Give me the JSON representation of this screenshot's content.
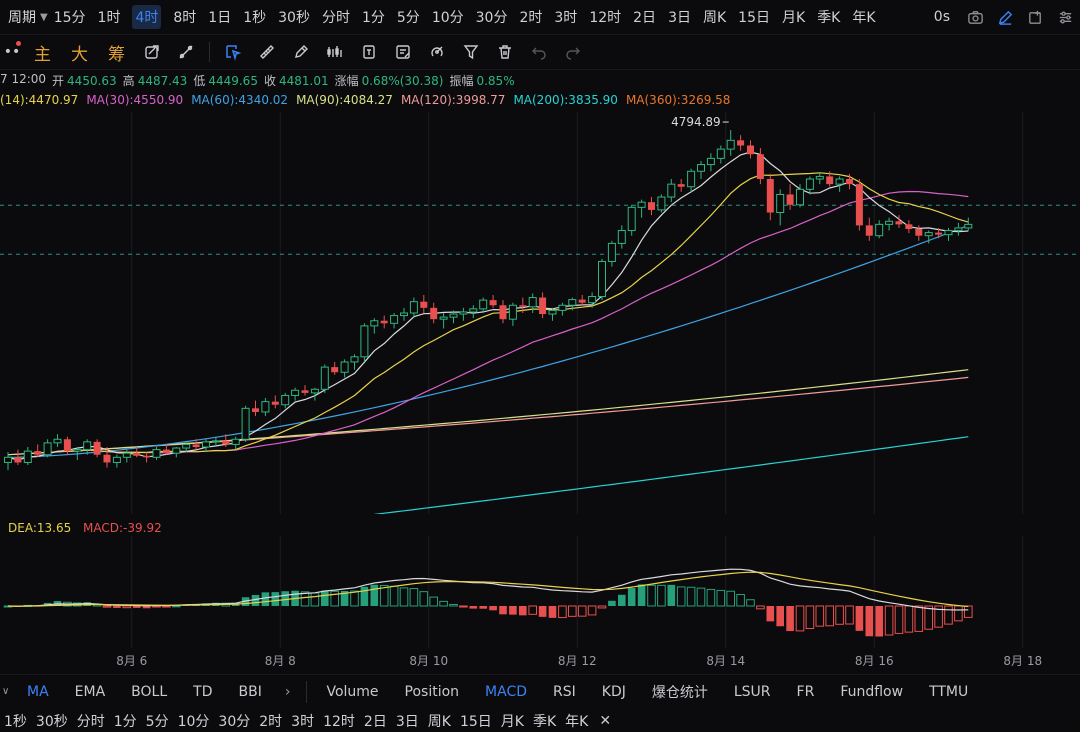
{
  "topbar": {
    "period_label": "周期",
    "timeframes": [
      "15分",
      "1时",
      "4时",
      "8时",
      "1日",
      "1秒",
      "30秒",
      "分时",
      "1分",
      "5分",
      "10分",
      "30分",
      "2时",
      "3时",
      "12时",
      "2日",
      "3日",
      "周K",
      "15日",
      "月K",
      "季K",
      "年K"
    ],
    "active_timeframe": "4时",
    "countdown": "0s"
  },
  "toolbar": {
    "main_label": "主",
    "big_label": "大",
    "chip_label": "筹"
  },
  "ohlc": {
    "time": "7 12:00",
    "open_label": "开",
    "open": "4450.63",
    "high_label": "高",
    "high": "4487.43",
    "low_label": "低",
    "low": "4449.65",
    "close_label": "收",
    "close": "4481.01",
    "change_label": "涨幅",
    "change": "0.68%(30.38)",
    "amplitude_label": "振幅",
    "amplitude": "0.85%"
  },
  "ma_legend": [
    {
      "text": "(14):4470.97",
      "color": "#e8d24a"
    },
    {
      "text": "MA(30):4550.90",
      "color": "#d861c8"
    },
    {
      "text": "MA(60):4340.02",
      "color": "#3fa3e6"
    },
    {
      "text": "MA(90):4084.27",
      "color": "#d8e08a"
    },
    {
      "text": "MA(120):3998.77",
      "color": "#f09a9a"
    },
    {
      "text": "MA(200):3835.90",
      "color": "#27d3d3"
    },
    {
      "text": "MA(360):3269.58",
      "color": "#e8762c"
    }
  ],
  "chart_data": {
    "type": "candlestick",
    "x_ticks": [
      "8月 6",
      "8月 8",
      "8月 10",
      "8月 12",
      "8月 14",
      "8月 16",
      "8月 18"
    ],
    "high_marker": "4794.89",
    "up_color": "#2fb67e",
    "down_color": "#e8504f",
    "candles": [
      [
        4150,
        4170,
        4135,
        4160
      ],
      [
        4160,
        4175,
        4145,
        4150
      ],
      [
        4150,
        4180,
        4145,
        4172
      ],
      [
        4172,
        4185,
        4160,
        4165
      ],
      [
        4165,
        4195,
        4160,
        4188
      ],
      [
        4188,
        4205,
        4180,
        4195
      ],
      [
        4195,
        4200,
        4165,
        4172
      ],
      [
        4172,
        4180,
        4155,
        4175
      ],
      [
        4175,
        4195,
        4165,
        4190
      ],
      [
        4190,
        4195,
        4160,
        4165
      ],
      [
        4165,
        4180,
        4140,
        4150
      ],
      [
        4150,
        4165,
        4140,
        4160
      ],
      [
        4160,
        4175,
        4150,
        4168
      ],
      [
        4168,
        4180,
        4160,
        4163
      ],
      [
        4163,
        4170,
        4150,
        4160
      ],
      [
        4160,
        4180,
        4155,
        4175
      ],
      [
        4175,
        4185,
        4165,
        4168
      ],
      [
        4168,
        4180,
        4160,
        4178
      ],
      [
        4178,
        4190,
        4170,
        4185
      ],
      [
        4185,
        4195,
        4175,
        4180
      ],
      [
        4180,
        4195,
        4170,
        4190
      ],
      [
        4190,
        4200,
        4180,
        4192
      ],
      [
        4192,
        4205,
        4180,
        4185
      ],
      [
        4185,
        4200,
        4175,
        4195
      ],
      [
        4195,
        4260,
        4190,
        4255
      ],
      [
        4255,
        4270,
        4240,
        4248
      ],
      [
        4248,
        4275,
        4240,
        4268
      ],
      [
        4268,
        4280,
        4255,
        4262
      ],
      [
        4262,
        4285,
        4255,
        4280
      ],
      [
        4280,
        4295,
        4270,
        4290
      ],
      [
        4290,
        4300,
        4280,
        4285
      ],
      [
        4285,
        4295,
        4270,
        4292
      ],
      [
        4292,
        4340,
        4285,
        4335
      ],
      [
        4335,
        4345,
        4320,
        4325
      ],
      [
        4325,
        4350,
        4315,
        4345
      ],
      [
        4345,
        4360,
        4330,
        4355
      ],
      [
        4355,
        4420,
        4345,
        4415
      ],
      [
        4415,
        4430,
        4400,
        4425
      ],
      [
        4425,
        4435,
        4410,
        4420
      ],
      [
        4420,
        4440,
        4410,
        4435
      ],
      [
        4435,
        4450,
        4425,
        4440
      ],
      [
        4440,
        4470,
        4430,
        4462
      ],
      [
        4462,
        4475,
        4440,
        4450
      ],
      [
        4450,
        4460,
        4420,
        4428
      ],
      [
        4428,
        4440,
        4410,
        4432
      ],
      [
        4432,
        4445,
        4420,
        4438
      ],
      [
        4438,
        4450,
        4425,
        4442
      ],
      [
        4442,
        4455,
        4430,
        4448
      ],
      [
        4448,
        4470,
        4440,
        4465
      ],
      [
        4465,
        4475,
        4450,
        4455
      ],
      [
        4455,
        4465,
        4420,
        4428
      ],
      [
        4428,
        4460,
        4415,
        4455
      ],
      [
        4455,
        4470,
        4440,
        4452
      ],
      [
        4452,
        4478,
        4440,
        4470
      ],
      [
        4470,
        4480,
        4430,
        4438
      ],
      [
        4438,
        4450,
        4425,
        4445
      ],
      [
        4445,
        4460,
        4435,
        4455
      ],
      [
        4455,
        4470,
        4445,
        4466
      ],
      [
        4466,
        4475,
        4455,
        4460
      ],
      [
        4460,
        4480,
        4450,
        4472
      ],
      [
        4472,
        4545,
        4465,
        4540
      ],
      [
        4540,
        4580,
        4530,
        4575
      ],
      [
        4575,
        4610,
        4565,
        4600
      ],
      [
        4600,
        4650,
        4590,
        4645
      ],
      [
        4645,
        4660,
        4625,
        4655
      ],
      [
        4655,
        4665,
        4630,
        4640
      ],
      [
        4640,
        4670,
        4635,
        4665
      ],
      [
        4665,
        4700,
        4655,
        4690
      ],
      [
        4690,
        4700,
        4675,
        4685
      ],
      [
        4685,
        4720,
        4675,
        4715
      ],
      [
        4715,
        4735,
        4700,
        4728
      ],
      [
        4728,
        4750,
        4715,
        4740
      ],
      [
        4740,
        4765,
        4730,
        4758
      ],
      [
        4758,
        4795,
        4745,
        4775
      ],
      [
        4775,
        4785,
        4755,
        4765
      ],
      [
        4765,
        4775,
        4740,
        4748
      ],
      [
        4748,
        4760,
        4690,
        4700
      ],
      [
        4700,
        4710,
        4620,
        4635
      ],
      [
        4635,
        4680,
        4610,
        4670
      ],
      [
        4670,
        4690,
        4640,
        4650
      ],
      [
        4650,
        4690,
        4645,
        4680
      ],
      [
        4680,
        4705,
        4670,
        4700
      ],
      [
        4700,
        4712,
        4690,
        4705
      ],
      [
        4705,
        4715,
        4685,
        4690
      ],
      [
        4690,
        4705,
        4675,
        4700
      ],
      [
        4700,
        4710,
        4680,
        4690
      ],
      [
        4690,
        4700,
        4600,
        4610
      ],
      [
        4610,
        4625,
        4580,
        4590
      ],
      [
        4590,
        4620,
        4585,
        4612
      ],
      [
        4612,
        4625,
        4600,
        4618
      ],
      [
        4618,
        4630,
        4605,
        4612
      ],
      [
        4612,
        4620,
        4595,
        4603
      ],
      [
        4603,
        4610,
        4580,
        4590
      ],
      [
        4590,
        4600,
        4575,
        4596
      ],
      [
        4596,
        4605,
        4585,
        4592
      ],
      [
        4592,
        4605,
        4580,
        4600
      ],
      [
        4600,
        4615,
        4590,
        4605
      ],
      [
        4605,
        4625,
        4600,
        4612
      ]
    ]
  },
  "macd_legend": {
    "dea": "DEA:13.65",
    "macd": "MACD:-39.92"
  },
  "indicators": {
    "main": [
      "MA",
      "EMA",
      "BOLL",
      "TD",
      "BBI"
    ],
    "active_main": "MA",
    "sub": [
      "Volume",
      "Position",
      "MACD",
      "RSI",
      "KDJ",
      "爆仓统计",
      "LSUR",
      "FR",
      "Fundflow",
      "TTMU"
    ],
    "active_sub": "MACD"
  },
  "bottom_timeframes": [
    "1秒",
    "30秒",
    "分时",
    "1分",
    "5分",
    "10分",
    "30分",
    "2时",
    "3时",
    "12时",
    "2日",
    "3日",
    "周K",
    "15日",
    "月K",
    "季K",
    "年K"
  ]
}
